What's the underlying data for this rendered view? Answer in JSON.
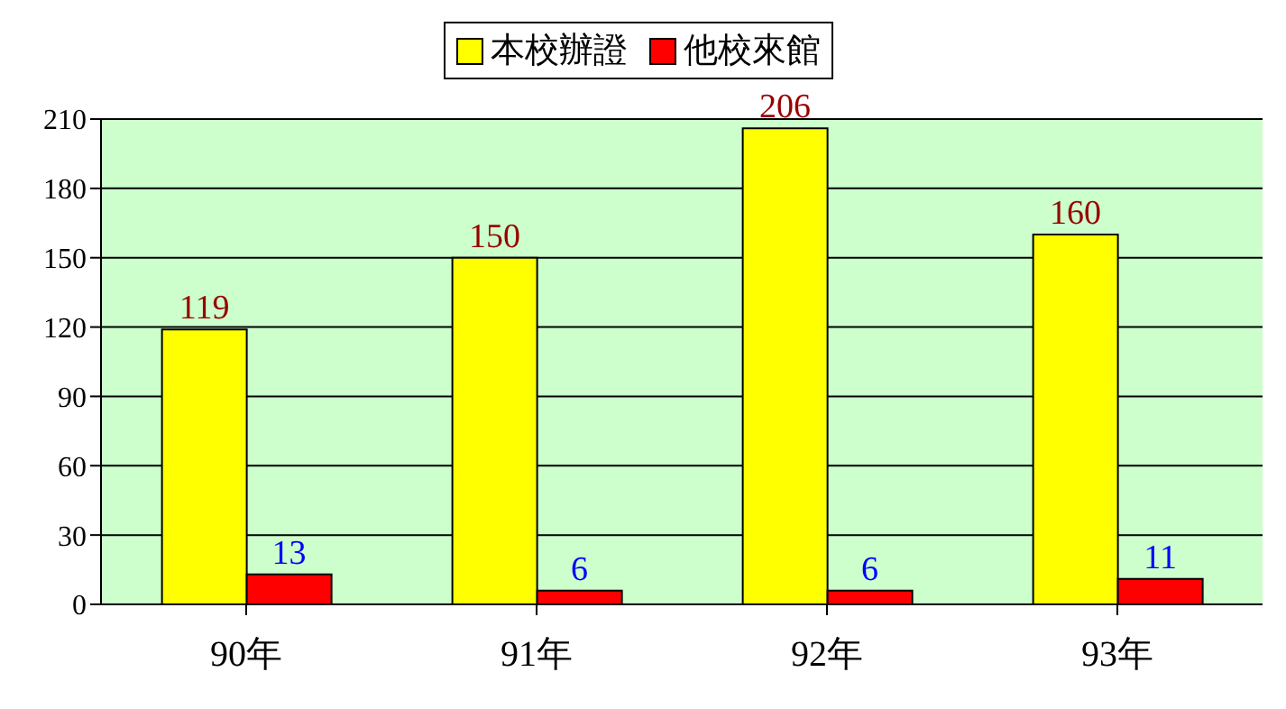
{
  "chart_data": {
    "type": "bar",
    "categories": [
      "90年",
      "91年",
      "92年",
      "93年"
    ],
    "series": [
      {
        "name": "本校辦證",
        "color": "#ffff00",
        "values": [
          119,
          150,
          206,
          160
        ]
      },
      {
        "name": "他校來館",
        "color": "#ff0000",
        "values": [
          13,
          6,
          6,
          11
        ]
      }
    ],
    "ylim": [
      0,
      210
    ],
    "yticks": [
      0,
      30,
      60,
      90,
      120,
      150,
      180,
      210
    ],
    "grid": "y",
    "legend": "top",
    "data_labels": true
  }
}
